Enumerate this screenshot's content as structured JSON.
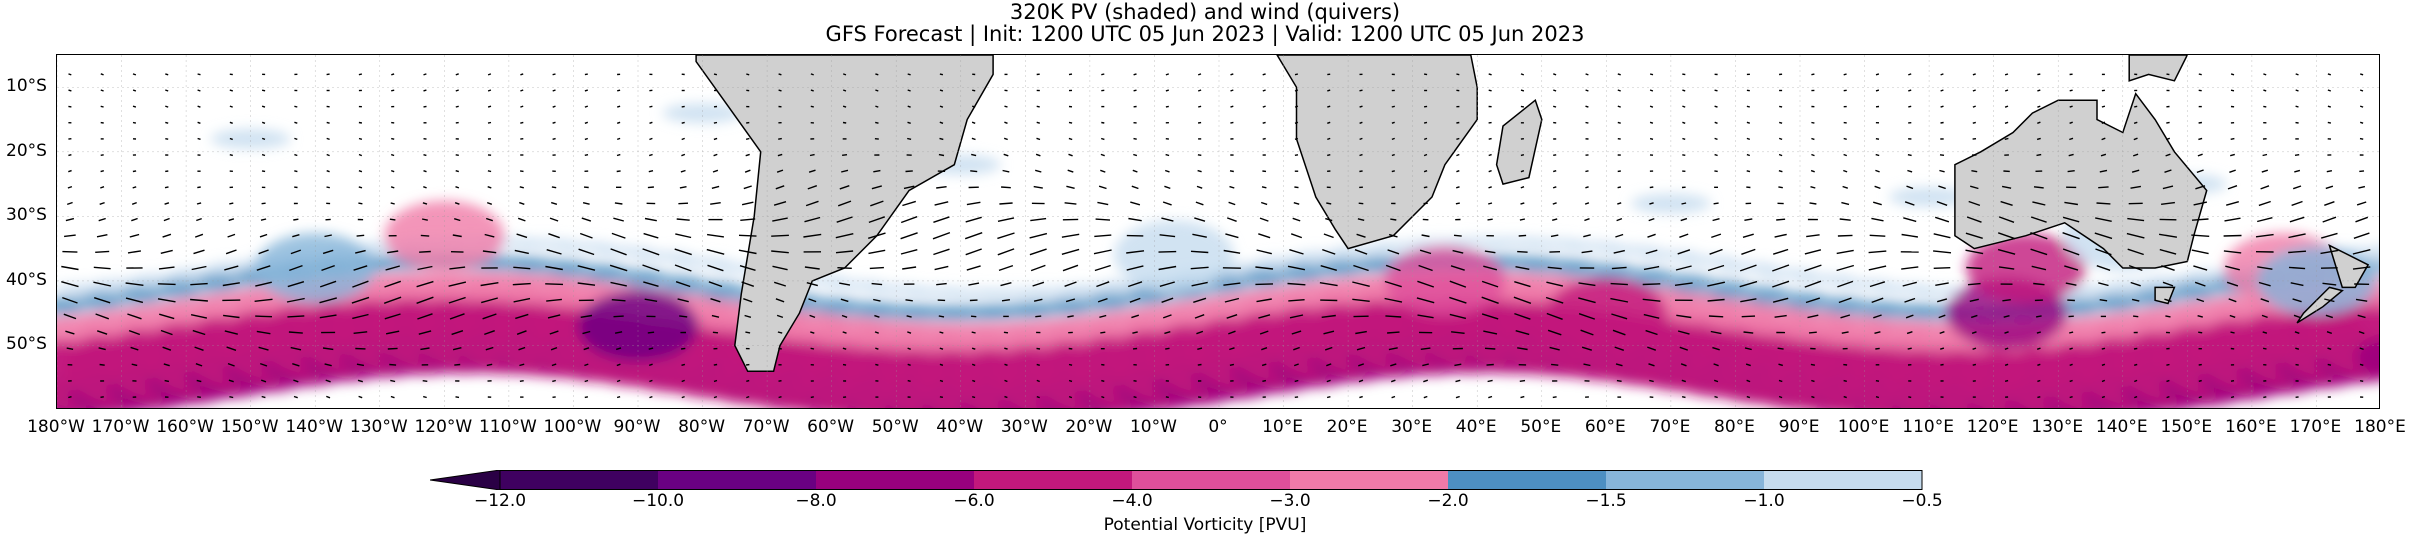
{
  "title": {
    "line1": "320K PV (shaded) and wind (quivers)",
    "line2": "GFS Forecast | Init: 1200 UTC 05 Jun 2023 | Valid: 1200 UTC 05 Jun 2023"
  },
  "map": {
    "lat_range": [
      -60,
      -5
    ],
    "lon_range": [
      -180,
      180
    ],
    "lat_labels": [
      "10°S",
      "20°S",
      "30°S",
      "40°S",
      "50°S"
    ],
    "lat_values": [
      -10,
      -20,
      -30,
      -40,
      -50
    ],
    "lon_labels": [
      "180°W",
      "170°W",
      "160°W",
      "150°W",
      "140°W",
      "130°W",
      "120°W",
      "110°W",
      "100°W",
      "90°W",
      "80°W",
      "70°W",
      "60°W",
      "50°W",
      "40°W",
      "30°W",
      "20°W",
      "10°W",
      "0°",
      "10°E",
      "20°E",
      "30°E",
      "40°E",
      "50°E",
      "60°E",
      "70°E",
      "80°E",
      "90°E",
      "100°E",
      "110°E",
      "120°E",
      "130°E",
      "140°E",
      "150°E",
      "160°E",
      "170°E",
      "180°E"
    ],
    "lon_values": [
      -180,
      -170,
      -160,
      -150,
      -140,
      -130,
      -120,
      -110,
      -100,
      -90,
      -80,
      -70,
      -60,
      -50,
      -40,
      -30,
      -20,
      -10,
      0,
      10,
      20,
      30,
      40,
      50,
      60,
      70,
      80,
      90,
      100,
      110,
      120,
      130,
      140,
      150,
      160,
      170,
      180
    ],
    "land_color": "#d0d0d0",
    "ocean_color": "#ffffff"
  },
  "colorbar": {
    "levels": [
      -12.0,
      -10.0,
      -8.0,
      -6.0,
      -4.0,
      -3.0,
      -2.0,
      -1.5,
      -1.0,
      -0.5
    ],
    "tick_labels": [
      "−12.0",
      "−10.0",
      "−8.0",
      "−6.0",
      "−4.0",
      "−3.0",
      "−2.0",
      "−1.5",
      "−1.0",
      "−0.5"
    ],
    "colors": [
      "#3f0060",
      "#6a0082",
      "#98007e",
      "#c2187c",
      "#de4f9b",
      "#f07aa8",
      "#4d8fc2",
      "#87b5da",
      "#c6dcef"
    ],
    "extend_color": "#2a0045",
    "label": "Potential Vorticity [PVU]"
  }
}
